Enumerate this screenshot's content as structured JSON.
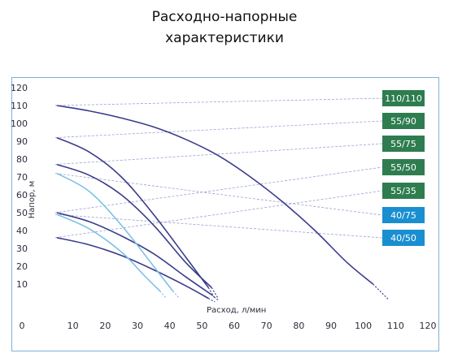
{
  "title_line1": "Расходно-напорные",
  "title_line2": "характеристики",
  "chart_data": {
    "type": "line",
    "xlabel": "Расход, л/мин",
    "ylabel": "Напор, м",
    "xlim": [
      0,
      120
    ],
    "ylim": [
      0,
      120
    ],
    "x_ticks": [
      "0",
      "10",
      "20",
      "30",
      "40",
      "50",
      "60",
      "70",
      "80",
      "90",
      "100",
      "110",
      "120"
    ],
    "y_ticks": [
      "10",
      "20",
      "30",
      "40",
      "50",
      "60",
      "70",
      "80",
      "90",
      "100",
      "110",
      "120"
    ],
    "grid": false,
    "legend_position": "right",
    "series": [
      {
        "name": "110/110",
        "color": "#2e7d4f",
        "curve_color": "#3a3c8c",
        "x": [
          5,
          15,
          25,
          35,
          45,
          55,
          65,
          75,
          85,
          95,
          103
        ],
        "y": [
          110,
          107,
          103,
          98,
          91,
          82,
          70,
          56,
          40,
          22,
          10
        ],
        "ext_x": [
          103,
          108
        ],
        "ext_y": [
          10,
          1
        ]
      },
      {
        "name": "55/90",
        "color": "#2e7d4f",
        "curve_color": "#3a3c8c",
        "x": [
          5,
          15,
          25,
          35,
          45,
          52
        ],
        "y": [
          92,
          84,
          70,
          49,
          25,
          8
        ],
        "ext_x": [
          52,
          54
        ],
        "ext_y": [
          8,
          2
        ]
      },
      {
        "name": "55/75",
        "color": "#2e7d4f",
        "curve_color": "#3a3c8c",
        "x": [
          5,
          15,
          25,
          35,
          45,
          53
        ],
        "y": [
          77,
          71,
          60,
          43,
          22,
          8
        ],
        "ext_x": [
          53,
          55
        ],
        "ext_y": [
          8,
          2
        ]
      },
      {
        "name": "55/50",
        "color": "#2e7d4f",
        "curve_color": "#3a3c8c",
        "x": [
          5,
          15,
          25,
          35,
          45,
          53
        ],
        "y": [
          50,
          45,
          37,
          27,
          14,
          4
        ],
        "ext_x": [
          53,
          55
        ],
        "ext_y": [
          4,
          1
        ]
      },
      {
        "name": "55/35",
        "color": "#2e7d4f",
        "curve_color": "#3a3c8c",
        "x": [
          5,
          15,
          25,
          35,
          45,
          52
        ],
        "y": [
          36,
          32,
          26,
          18,
          9,
          2
        ],
        "ext_x": [
          52,
          54
        ],
        "ext_y": [
          2,
          0
        ]
      },
      {
        "name": "40/75",
        "color": "#1a8fd0",
        "curve_color": "#7cc0e8",
        "x": [
          5,
          15,
          25,
          35,
          41
        ],
        "y": [
          72,
          62,
          43,
          20,
          6
        ],
        "ext_x": [
          41,
          43
        ],
        "ext_y": [
          6,
          2
        ]
      },
      {
        "name": "40/50",
        "color": "#1a8fd0",
        "curve_color": "#7cc0e8",
        "x": [
          5,
          15,
          25,
          32,
          37
        ],
        "y": [
          49,
          41,
          28,
          15,
          6
        ],
        "ext_x": [
          37,
          39
        ],
        "ext_y": [
          6,
          2
        ]
      }
    ]
  }
}
